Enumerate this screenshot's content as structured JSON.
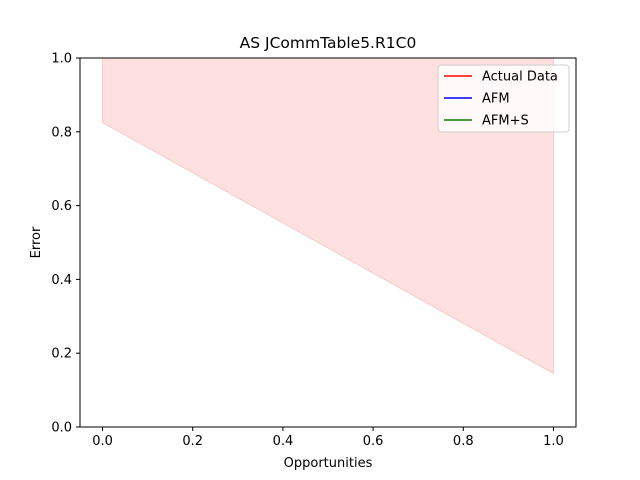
{
  "chart_data": {
    "type": "line",
    "title": "AS JCommTable5.R1C0",
    "xlabel": "Opportunities",
    "ylabel": "Error",
    "xlim": [
      -0.05,
      1.05
    ],
    "ylim": [
      0.0,
      1.0
    ],
    "xticks": [
      0.0,
      0.2,
      0.4,
      0.6,
      0.8,
      1.0
    ],
    "yticks": [
      0.0,
      0.2,
      0.4,
      0.6,
      0.8,
      1.0
    ],
    "xtick_labels": [
      "0.0",
      "0.2",
      "0.4",
      "0.6",
      "0.8",
      "1.0"
    ],
    "ytick_labels": [
      "0.0",
      "0.2",
      "0.4",
      "0.6",
      "0.8",
      "1.0"
    ],
    "grid": false,
    "legend_position": "top-right",
    "series": [
      {
        "name": "Actual Data",
        "color": "#ff0000",
        "x": [],
        "y": []
      },
      {
        "name": "AFM",
        "color": "#0000ff",
        "x": [],
        "y": []
      },
      {
        "name": "AFM+S",
        "color": "#008000",
        "x": [],
        "y": []
      }
    ],
    "band": {
      "color": "#ffe0e0",
      "edge_color": "#ffc8c8",
      "x": [
        0.0,
        1.0
      ],
      "lower": [
        0.825,
        0.145
      ],
      "upper": [
        1.0,
        1.0
      ]
    }
  }
}
